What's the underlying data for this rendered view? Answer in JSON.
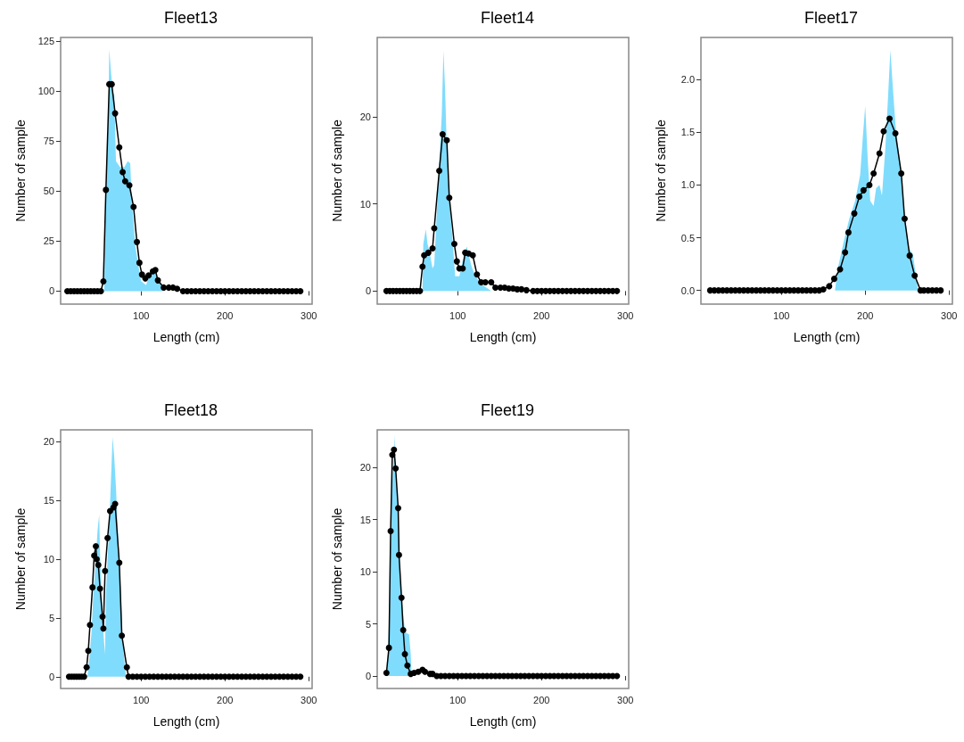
{
  "chart_data": [
    {
      "type": "line",
      "title": "Fleet13",
      "xlabel": "Length (cm)",
      "ylabel": "Number of sample",
      "xlim": [
        4,
        304
      ],
      "xticks": [
        100,
        200,
        300
      ],
      "ylim": [
        -6.5,
        127
      ],
      "yticks": [
        0,
        25,
        50,
        75,
        100,
        125
      ],
      "grid": false,
      "series": [
        {
          "type": "area",
          "color": "#80dcfc",
          "marker": "none",
          "x": [
            12,
            56,
            57,
            59,
            61,
            62,
            64,
            66,
            68,
            70,
            75,
            80,
            84,
            87,
            89,
            93,
            97,
            100,
            106,
            111,
            117,
            122,
            126,
            290
          ],
          "values": [
            0,
            0,
            30,
            63,
            89,
            121,
            110,
            100,
            98,
            65,
            62,
            62,
            65,
            64,
            45,
            23,
            12,
            5,
            3,
            10,
            10,
            5,
            0,
            0
          ]
        },
        {
          "type": "line",
          "color": "#000000",
          "marker": "circle",
          "x": [
            12,
            16,
            20,
            24,
            28,
            32,
            36,
            40,
            44,
            48,
            52,
            55,
            58,
            62,
            65,
            69,
            74,
            78,
            81,
            86,
            91,
            95,
            98,
            101,
            105,
            109,
            114,
            117,
            120,
            127,
            133,
            138,
            143,
            150,
            155,
            160,
            165,
            170,
            175,
            180,
            185,
            190,
            195,
            200,
            205,
            210,
            215,
            220,
            225,
            230,
            235,
            240,
            245,
            250,
            255,
            260,
            265,
            270,
            275,
            280,
            285,
            290
          ],
          "values": [
            0,
            0,
            0,
            0,
            0,
            0,
            0,
            0,
            0,
            0,
            0,
            4.9,
            50.7,
            103.6,
            103.6,
            89,
            72,
            59.6,
            55,
            53,
            42.2,
            24.6,
            14.2,
            8.3,
            6.4,
            7.9,
            9.9,
            10.6,
            5.4,
            1.8,
            1.8,
            1.8,
            1.2,
            0,
            0,
            0,
            0,
            0,
            0,
            0,
            0,
            0,
            0,
            0,
            0,
            0,
            0,
            0,
            0,
            0,
            0,
            0,
            0,
            0,
            0,
            0,
            0,
            0,
            0,
            0,
            0,
            0
          ]
        }
      ]
    },
    {
      "type": "line",
      "title": "Fleet14",
      "xlabel": "Length (cm)",
      "ylabel": "Number of sample",
      "xlim": [
        4,
        304
      ],
      "xticks": [
        100,
        200,
        300
      ],
      "ylim": [
        -1.5,
        29.1
      ],
      "yticks": [
        0,
        10,
        20
      ],
      "grid": false,
      "series": [
        {
          "type": "area",
          "color": "#80dcfc",
          "marker": "none",
          "x": [
            15,
            58,
            59,
            62,
            64,
            66,
            70,
            72,
            75,
            78,
            81,
            83,
            85,
            87,
            90,
            94,
            97,
            102,
            108,
            111,
            116,
            121,
            128,
            140,
            290
          ],
          "values": [
            0,
            0,
            5.4,
            7.1,
            5.4,
            4.7,
            2.6,
            3.0,
            8.8,
            14.6,
            20.2,
            27.6,
            23.1,
            16.3,
            10.2,
            5.8,
            1.7,
            1.7,
            4.4,
            5.1,
            3.0,
            1.7,
            0.8,
            0,
            0
          ]
        },
        {
          "type": "line",
          "color": "#000000",
          "marker": "circle",
          "x": [
            15,
            19,
            23,
            27,
            31,
            35,
            39,
            43,
            47,
            51,
            55,
            58,
            60,
            65,
            70,
            72,
            78,
            82,
            87,
            90,
            96,
            99,
            102,
            106,
            109,
            113,
            118,
            123,
            128,
            133,
            140,
            145,
            151,
            156,
            161,
            166,
            171,
            176,
            182,
            190,
            195,
            200,
            205,
            210,
            215,
            220,
            225,
            230,
            235,
            240,
            245,
            250,
            255,
            260,
            265,
            270,
            275,
            280,
            285,
            290
          ],
          "values": [
            0,
            0,
            0,
            0,
            0,
            0,
            0,
            0,
            0,
            0,
            0,
            2.8,
            4.1,
            4.4,
            4.9,
            7.2,
            13.8,
            18.0,
            17.3,
            10.7,
            5.4,
            3.4,
            2.6,
            2.6,
            4.4,
            4.3,
            4.1,
            1.9,
            1.0,
            1.0,
            1.0,
            0.4,
            0.4,
            0.4,
            0.3,
            0.3,
            0.2,
            0.2,
            0.1,
            0,
            0,
            0,
            0,
            0,
            0,
            0,
            0,
            0,
            0,
            0,
            0,
            0,
            0,
            0,
            0,
            0,
            0,
            0,
            0,
            0
          ]
        }
      ]
    },
    {
      "type": "line",
      "title": "Fleet17",
      "xlabel": "Length (cm)",
      "ylabel": "Number of sample",
      "xlim": [
        4,
        304
      ],
      "xticks": [
        100,
        200,
        300
      ],
      "ylim": [
        -0.13,
        2.4
      ],
      "yticks": [
        {
          "value": 0,
          "label": "0.0"
        },
        {
          "value": 0.5,
          "label": "0.5"
        },
        {
          "value": 1,
          "label": "1.0"
        },
        {
          "value": 1.5,
          "label": "1.5"
        },
        {
          "value": 2,
          "label": "2.0"
        }
      ],
      "grid": false,
      "series": [
        {
          "type": "area",
          "color": "#80dcfc",
          "marker": "none",
          "x": [
            15,
            164,
            167,
            174,
            181,
            188,
            194,
            197,
            200,
            203,
            206,
            210,
            213,
            217,
            220,
            224,
            227,
            230,
            233,
            236,
            242,
            247,
            252,
            257,
            261,
            263,
            290
          ],
          "values": [
            0,
            0,
            0.2,
            0.45,
            0.68,
            0.85,
            1.1,
            1.44,
            1.75,
            1.24,
            0.85,
            0.8,
            0.97,
            1.0,
            0.9,
            1.35,
            1.8,
            2.28,
            1.92,
            1.58,
            1.18,
            0.73,
            0.4,
            0.34,
            0.11,
            0,
            0
          ]
        },
        {
          "type": "line",
          "color": "#000000",
          "marker": "circle",
          "x": [
            15,
            20,
            25,
            30,
            35,
            40,
            45,
            50,
            55,
            60,
            65,
            70,
            75,
            80,
            85,
            90,
            95,
            100,
            105,
            110,
            115,
            120,
            125,
            130,
            135,
            140,
            145,
            150,
            157,
            163,
            170,
            176,
            180,
            187,
            193,
            198,
            205,
            210,
            217,
            222,
            229,
            236,
            243,
            247,
            253,
            259,
            266,
            270,
            275,
            280,
            285,
            290
          ],
          "values": [
            0,
            0,
            0,
            0,
            0,
            0,
            0,
            0,
            0,
            0,
            0,
            0,
            0,
            0,
            0,
            0,
            0,
            0,
            0,
            0,
            0,
            0,
            0,
            0,
            0,
            0,
            0,
            0.01,
            0.04,
            0.11,
            0.2,
            0.36,
            0.55,
            0.73,
            0.89,
            0.95,
            1.0,
            1.11,
            1.3,
            1.51,
            1.63,
            1.49,
            1.11,
            0.68,
            0.33,
            0.14,
            0,
            0,
            0,
            0,
            0,
            0
          ]
        }
      ]
    },
    {
      "type": "line",
      "title": "Fleet18",
      "xlabel": "Length (cm)",
      "ylabel": "Number of sample",
      "xlim": [
        4,
        304
      ],
      "xticks": [
        100,
        200,
        300
      ],
      "ylim": [
        -1,
        21
      ],
      "yticks": [
        0,
        5,
        10,
        15,
        20
      ],
      "grid": false,
      "series": [
        {
          "type": "area",
          "color": "#80dcfc",
          "marker": "none",
          "x": [
            14,
            36,
            38,
            41,
            43,
            46,
            48,
            50,
            51,
            53,
            55,
            57,
            58,
            61,
            63,
            66,
            68,
            70,
            73,
            76,
            78,
            82,
            290
          ],
          "values": [
            0,
            0,
            1.4,
            3.9,
            7,
            10,
            12.4,
            13.8,
            10.5,
            7,
            3.7,
            1.9,
            7,
            11.5,
            14.8,
            20.4,
            18.6,
            16.1,
            11,
            7,
            2.9,
            0,
            0
          ]
        },
        {
          "type": "line",
          "color": "#000000",
          "marker": "circle",
          "x": [
            14,
            17,
            20,
            23,
            26,
            29,
            32,
            35,
            37,
            39,
            42,
            44,
            46,
            47,
            49,
            51,
            54,
            55,
            57,
            60,
            63,
            67,
            69,
            74,
            77,
            83,
            85,
            90,
            95,
            100,
            105,
            110,
            115,
            120,
            125,
            130,
            135,
            140,
            145,
            150,
            155,
            160,
            165,
            170,
            175,
            180,
            185,
            190,
            195,
            200,
            205,
            210,
            215,
            220,
            225,
            230,
            235,
            240,
            245,
            250,
            255,
            260,
            265,
            270,
            275,
            280,
            285,
            290
          ],
          "values": [
            0,
            0,
            0,
            0,
            0,
            0,
            0,
            0.8,
            2.2,
            4.4,
            7.6,
            10.3,
            11.1,
            10.0,
            9.5,
            7.5,
            5.1,
            4.1,
            9.0,
            11.8,
            14.1,
            14.4,
            14.7,
            9.7,
            3.5,
            0.8,
            0,
            0,
            0,
            0,
            0,
            0,
            0,
            0,
            0,
            0,
            0,
            0,
            0,
            0,
            0,
            0,
            0,
            0,
            0,
            0,
            0,
            0,
            0,
            0,
            0,
            0,
            0,
            0,
            0,
            0,
            0,
            0,
            0,
            0,
            0,
            0,
            0,
            0,
            0,
            0,
            0,
            0
          ]
        }
      ]
    },
    {
      "type": "line",
      "title": "Fleet19",
      "xlabel": "Length (cm)",
      "ylabel": "Number of sample",
      "xlim": [
        4,
        304
      ],
      "xticks": [
        100,
        200,
        300
      ],
      "ylim": [
        -1.2,
        23.6
      ],
      "yticks": [
        0,
        5,
        10,
        15,
        20
      ],
      "grid": false,
      "series": [
        {
          "type": "area",
          "color": "#80dcfc",
          "marker": "none",
          "x": [
            15,
            17,
            19,
            21,
            24,
            25,
            26,
            28,
            30,
            31,
            34,
            37,
            39,
            42,
            44,
            45,
            290
          ],
          "values": [
            0,
            2.7,
            8.1,
            17.2,
            21.1,
            23.1,
            20.1,
            17.2,
            13.5,
            9.5,
            6.7,
            4.4,
            4.1,
            4.0,
            2.1,
            0,
            0
          ]
        },
        {
          "type": "line",
          "color": "#000000",
          "marker": "circle",
          "x": [
            15,
            18,
            20,
            22,
            24,
            26,
            29,
            30,
            33,
            35,
            37,
            40,
            44,
            48,
            53,
            58,
            61,
            67,
            70,
            75,
            80,
            85,
            90,
            95,
            100,
            105,
            110,
            115,
            120,
            125,
            130,
            135,
            140,
            145,
            150,
            155,
            160,
            165,
            170,
            175,
            180,
            185,
            190,
            195,
            200,
            205,
            210,
            215,
            220,
            225,
            230,
            235,
            240,
            245,
            250,
            255,
            260,
            265,
            270,
            275,
            280,
            285,
            290
          ],
          "values": [
            0.3,
            2.7,
            13.9,
            21.2,
            21.7,
            19.9,
            16.1,
            11.6,
            7.5,
            4.4,
            2.1,
            1.0,
            0.2,
            0.3,
            0.4,
            0.6,
            0.4,
            0.2,
            0.2,
            0,
            0,
            0,
            0,
            0,
            0,
            0,
            0,
            0,
            0,
            0,
            0,
            0,
            0,
            0,
            0,
            0,
            0,
            0,
            0,
            0,
            0,
            0,
            0,
            0,
            0,
            0,
            0,
            0,
            0,
            0,
            0,
            0,
            0,
            0,
            0,
            0,
            0,
            0,
            0,
            0,
            0,
            0,
            0
          ]
        }
      ]
    }
  ]
}
